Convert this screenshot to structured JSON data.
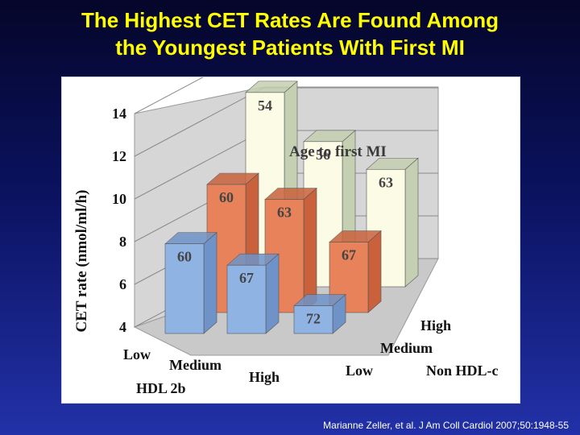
{
  "slide": {
    "title_line1": "The Highest CET Rates Are Found Among",
    "title_line2": "the Youngest Patients With First MI",
    "citation": "Marianne Zeller, et al. J Am Coll Cardiol 2007;50:1948-55"
  },
  "chart_data": {
    "type": "bar",
    "subtype": "3d-grouped-bar",
    "ylabel": "CET rate (nmol/ml/h)",
    "ylim": [
      4,
      14
    ],
    "yticks": [
      4,
      6,
      8,
      10,
      12,
      14
    ],
    "xlabel": "HDL 2b",
    "zlabel": "Non HDL-c",
    "legend_text": "Age to first MI",
    "x_categories": [
      "Low",
      "Medium",
      "High"
    ],
    "z_categories": [
      "Low",
      "Medium",
      "High"
    ],
    "grid": true,
    "series": [
      {
        "group": "Low",
        "color": "#8fb4e4",
        "values": [
          8.2,
          7.2,
          5.3
        ],
        "labels": [
          "60",
          "67",
          "72"
        ]
      },
      {
        "group": "Medium",
        "color": "#e8825a",
        "values": [
          10.0,
          9.3,
          7.3
        ],
        "labels": [
          "60",
          "63",
          "67"
        ]
      },
      {
        "group": "High",
        "color": "#fbfbe6",
        "values": [
          13.1,
          10.8,
          9.5
        ],
        "labels": [
          "54",
          "56",
          "63"
        ]
      }
    ],
    "colors": {
      "side_blue": "#6f93c8",
      "side_orange": "#c9623c",
      "side_cream": "#c5d0b2"
    }
  }
}
